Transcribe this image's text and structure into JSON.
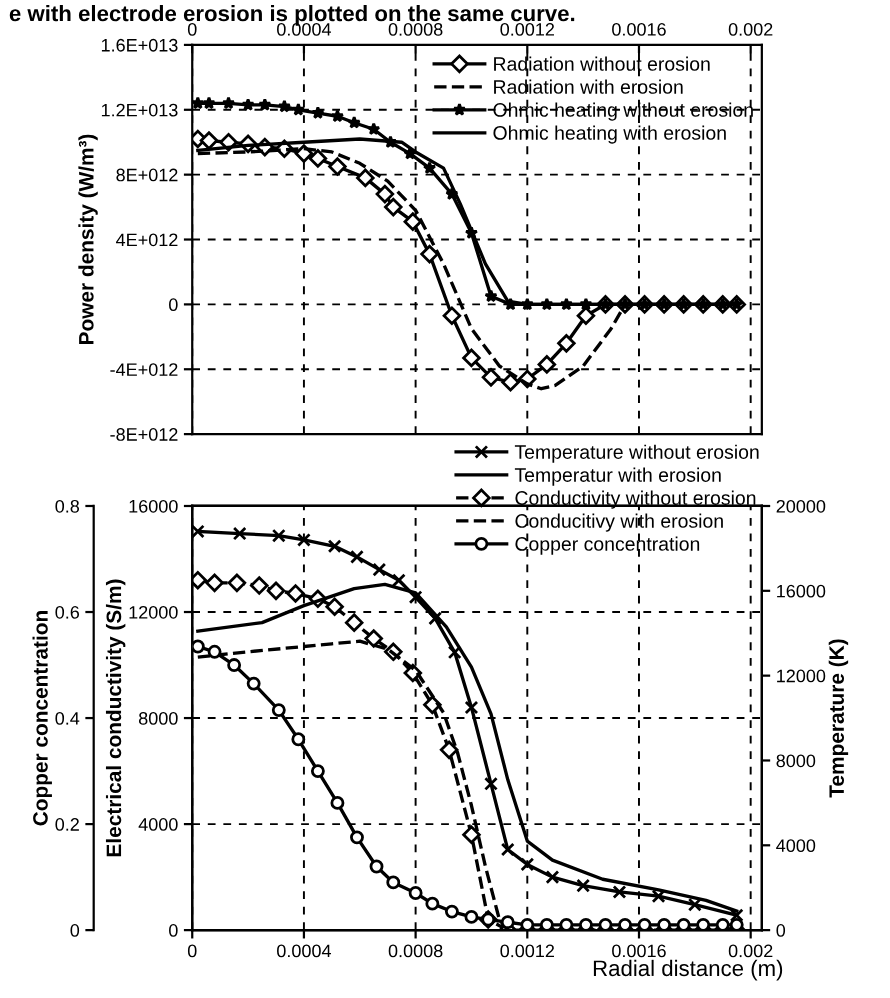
{
  "chart_data": [
    {
      "type": "line",
      "ylabel": "Power density (W/m³)",
      "annotations": [
        "e with electrode erosion is plotted on the same curve."
      ],
      "xlim": [
        0,
        0.00204
      ],
      "xticks": [
        0,
        0.0004,
        0.0008,
        0.0012,
        0.0016,
        0.002
      ],
      "ylim": [
        -8000000000000.0,
        16000000000000.0
      ],
      "yticks": [
        {
          "value": -8000000000000.0,
          "label": "-8E+012"
        },
        {
          "value": -4000000000000.0,
          "label": "-4E+012"
        },
        0,
        {
          "value": 4000000000000.0,
          "label": "4E+012"
        },
        {
          "value": 8000000000000.0,
          "label": "8E+012"
        },
        {
          "value": 12000000000000.0,
          "label": "1.2E+013"
        },
        {
          "value": 16000000000000.0,
          "label": "1.6E+013"
        }
      ],
      "grid": true,
      "legend": "top right",
      "series": [
        {
          "name": "Radiation without erosion",
          "color": "#000000",
          "marker": "diamond",
          "line_style": "solid",
          "x": [
            2e-05,
            6e-05,
            0.00013,
            0.0002,
            0.00026,
            0.00033,
            0.0004,
            0.00045,
            0.00052,
            0.00062,
            0.00069,
            0.00072,
            0.00079,
            0.00085,
            0.00093,
            0.001,
            0.00107,
            0.00114,
            0.0012,
            0.00127,
            0.00134,
            0.00141,
            0.00148,
            0.00155,
            0.00162,
            0.00169,
            0.00176,
            0.00183,
            0.0019,
            0.00195
          ],
          "values": [
            10200000000000.0,
            10100000000000.0,
            10000000000000.0,
            9900000000000.0,
            9700000000000.0,
            9600000000000.0,
            9300000000000.0,
            9000000000000.0,
            8500000000000.0,
            7800000000000.0,
            6800000000000.0,
            6000000000000.0,
            5100000000000.0,
            3100000000000.0,
            -700000000000.0,
            -3300000000000.0,
            -4500000000000.0,
            -4800000000000.0,
            -4600000000000.0,
            -3700000000000.0,
            -2400000000000.0,
            -700000000000.0,
            0,
            0,
            0,
            0,
            0,
            0,
            0,
            0
          ]
        },
        {
          "name": "Radiation with erosion",
          "color": "#000000",
          "marker": "none",
          "line_style": "dashed",
          "x": [
            2e-05,
            0.0002,
            0.0004,
            0.0005,
            0.0006,
            0.0007,
            0.0008,
            0.0009,
            0.001,
            0.0011,
            0.0012,
            0.00125,
            0.0013,
            0.0014,
            0.0015,
            0.00155
          ],
          "values": [
            9300000000000.0,
            9400000000000.0,
            9600000000000.0,
            9400000000000.0,
            8700000000000.0,
            7600000000000.0,
            5800000000000.0,
            2500000000000.0,
            -1500000000000.0,
            -3800000000000.0,
            -4900000000000.0,
            -5200000000000.0,
            -5000000000000.0,
            -3800000000000.0,
            -1500000000000.0,
            0
          ]
        },
        {
          "name": "Ohmic heating without erosion",
          "color": "#000000",
          "marker": "star",
          "line_style": "solid",
          "x": [
            2e-05,
            6e-05,
            0.00013,
            0.0002,
            0.00026,
            0.00033,
            0.00038,
            0.00045,
            0.00052,
            0.00058,
            0.00065,
            0.00071,
            0.00078,
            0.00085,
            0.00093,
            0.001,
            0.00107,
            0.00114,
            0.0012,
            0.00127,
            0.00134,
            0.00141,
            0.00148,
            0.00155,
            0.00162,
            0.00169,
            0.00176,
            0.00183,
            0.0019,
            0.00195
          ],
          "values": [
            12400000000000.0,
            12400000000000.0,
            12400000000000.0,
            12300000000000.0,
            12300000000000.0,
            12200000000000.0,
            12000000000000.0,
            11800000000000.0,
            11600000000000.0,
            11200000000000.0,
            10800000000000.0,
            10000000000000.0,
            9300000000000.0,
            8400000000000.0,
            6800000000000.0,
            4400000000000.0,
            500000000000.0,
            0,
            0,
            0,
            0,
            0,
            0,
            0,
            0,
            0,
            0,
            0,
            0,
            0
          ]
        },
        {
          "name": "Ohmic heating with erosion",
          "color": "#000000",
          "marker": "none",
          "line_style": "solid",
          "x": [
            2e-05,
            0.0002,
            0.0004,
            0.0006,
            0.00075,
            0.0008,
            0.0009,
            0.00096,
            0.00105,
            0.00113,
            0.0012,
            0.0016,
            0.00195
          ],
          "values": [
            9500000000000.0,
            9800000000000.0,
            10000000000000.0,
            10200000000000.0,
            10000000000000.0,
            9400000000000.0,
            8400000000000.0,
            6200000000000.0,
            2500000000000.0,
            200000000000.0,
            0,
            0,
            0
          ]
        }
      ]
    },
    {
      "type": "line",
      "xlabel": "Radial distance (m)",
      "ylabel": "Electrical conductivity (S/m)",
      "y2label": "Temperature (K)",
      "y3label": "Copper concentration",
      "xlim": [
        0,
        0.00204
      ],
      "xticks": [
        0,
        0.0004,
        0.0008,
        0.0012,
        0.0016,
        0.002
      ],
      "ylim": [
        0,
        16000
      ],
      "yticks": [
        0,
        4000,
        8000,
        12000,
        16000
      ],
      "y2lim": [
        0,
        20000
      ],
      "y2ticks": [
        0,
        4000,
        8000,
        12000,
        16000,
        20000
      ],
      "y3lim": [
        0,
        0.8
      ],
      "y3ticks": [
        0,
        0.2,
        0.4,
        0.6,
        0.8
      ],
      "grid": true,
      "legend": "top right",
      "series": [
        {
          "name": "Temperature without erosion",
          "color": "#000000",
          "marker": "cross",
          "line_style": "solid",
          "axis": "y2",
          "x": [
            2e-05,
            0.00017,
            0.00031,
            0.0004,
            0.00051,
            0.00059,
            0.00067,
            0.00074,
            0.0008,
            0.00087,
            0.00094,
            0.001,
            0.00107,
            0.00113,
            0.0012,
            0.00129,
            0.0014,
            0.00153,
            0.00167,
            0.0018,
            0.00195
          ],
          "values": [
            18800,
            18700,
            18600,
            18400,
            18100,
            17600,
            17000,
            16500,
            15700,
            14700,
            13100,
            10500,
            6900,
            3800,
            3100,
            2500,
            2100,
            1800,
            1600,
            1200,
            700
          ]
        },
        {
          "name": "Temperatur with erosion",
          "color": "#000000",
          "marker": "none",
          "line_style": "solid",
          "axis": "y2",
          "x": [
            2e-05,
            0.00025,
            0.0004,
            0.00058,
            0.00069,
            0.0008,
            0.00091,
            0.001,
            0.00107,
            0.00113,
            0.0012,
            0.00129,
            0.00147,
            0.00167,
            0.00184,
            0.00195
          ],
          "values": [
            14100,
            14500,
            15300,
            16100,
            16300,
            15900,
            14300,
            12400,
            10200,
            7100,
            4200,
            3300,
            2400,
            1900,
            1400,
            900
          ]
        },
        {
          "name": "Conductivity without erosion",
          "color": "#000000",
          "marker": "diamond",
          "line_style": "dashed",
          "x": [
            2e-05,
            8e-05,
            0.00016,
            0.00024,
            0.0003,
            0.00037,
            0.00045,
            0.00051,
            0.00058,
            0.00065,
            0.00072,
            0.00079,
            0.00086,
            0.00092,
            0.001,
            0.00106,
            0.00113,
            0.0012,
            0.00127,
            0.00134,
            0.00141,
            0.00148,
            0.00155,
            0.00162,
            0.00169,
            0.00176,
            0.00183,
            0.0019,
            0.00195
          ],
          "values": [
            13200,
            13100,
            13100,
            13000,
            12800,
            12700,
            12500,
            12200,
            11600,
            11000,
            10500,
            9700,
            8500,
            6800,
            3600,
            400,
            0,
            0,
            0,
            0,
            0,
            0,
            0,
            0,
            0,
            0,
            0,
            0,
            0
          ]
        },
        {
          "name": "Conducitivy with erosion",
          "color": "#000000",
          "marker": "none",
          "line_style": "dashed",
          "x": [
            2e-05,
            0.0002,
            0.0004,
            0.0005,
            0.0006,
            0.0007,
            0.0008,
            0.0009,
            0.00095,
            0.001,
            0.00105,
            0.0011,
            0.00113
          ],
          "values": [
            10300,
            10500,
            10700,
            10800,
            10900,
            10600,
            9800,
            8200,
            6700,
            4700,
            2400,
            400,
            0
          ]
        },
        {
          "name": "Copper concentration",
          "color": "#000000",
          "marker": "circle",
          "line_style": "solid",
          "axis": "y3",
          "x": [
            2e-05,
            8e-05,
            0.00015,
            0.00022,
            0.00031,
            0.00038,
            0.00045,
            0.00052,
            0.00059,
            0.00066,
            0.00072,
            0.0008,
            0.00086,
            0.00093,
            0.001,
            0.00106,
            0.00113,
            0.0012,
            0.00127,
            0.00134,
            0.00141,
            0.00148,
            0.00155,
            0.00162,
            0.00169,
            0.00176,
            0.00183,
            0.0019,
            0.00195
          ],
          "values": [
            0.535,
            0.525,
            0.5,
            0.465,
            0.415,
            0.36,
            0.3,
            0.24,
            0.175,
            0.12,
            0.09,
            0.07,
            0.05,
            0.035,
            0.025,
            0.02,
            0.015,
            0.01,
            0.01,
            0.01,
            0.01,
            0.01,
            0.01,
            0.01,
            0.01,
            0.01,
            0.01,
            0.01,
            0.01
          ]
        }
      ]
    }
  ]
}
